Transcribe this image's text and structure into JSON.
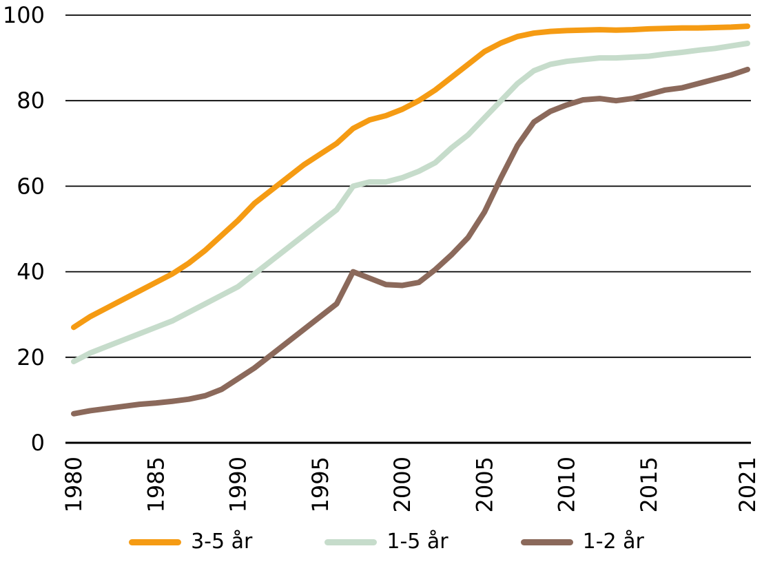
{
  "chart_data": {
    "type": "line",
    "title": "",
    "xlabel": "",
    "ylabel": "",
    "ylim": [
      0,
      100
    ],
    "yticks": [
      0,
      20,
      40,
      60,
      80,
      100
    ],
    "xticks": [
      1980,
      1985,
      1990,
      1995,
      2000,
      2005,
      2010,
      2015,
      2021
    ],
    "grid": true,
    "legend_position": "bottom",
    "x": [
      1980,
      1981,
      1982,
      1983,
      1984,
      1985,
      1986,
      1987,
      1988,
      1989,
      1990,
      1991,
      1992,
      1993,
      1994,
      1995,
      1996,
      1997,
      1998,
      1999,
      2000,
      2001,
      2002,
      2003,
      2004,
      2005,
      2006,
      2007,
      2008,
      2009,
      2010,
      2011,
      2012,
      2013,
      2014,
      2015,
      2016,
      2017,
      2018,
      2019,
      2020,
      2021
    ],
    "series": [
      {
        "name": "3-5 år",
        "color": "#F59B13",
        "values": [
          27,
          29.5,
          31.5,
          33.5,
          35.5,
          37.5,
          39.5,
          42,
          45,
          48.5,
          52,
          56,
          59,
          62,
          65,
          67.5,
          70,
          73.5,
          75.5,
          76.5,
          78,
          80,
          82.5,
          85.5,
          88.5,
          91.5,
          93.5,
          95,
          95.8,
          96.2,
          96.4,
          96.5,
          96.6,
          96.5,
          96.6,
          96.8,
          96.9,
          97,
          97,
          97.1,
          97.2,
          97.4
        ]
      },
      {
        "name": "1-5 år",
        "color": "#C6DCCB",
        "values": [
          19,
          21,
          22.5,
          24,
          25.5,
          27,
          28.5,
          30.5,
          32.5,
          34.5,
          36.5,
          39.5,
          42.5,
          45.5,
          48.5,
          51.5,
          54.5,
          60,
          61,
          61,
          62,
          63.5,
          65.5,
          69,
          72,
          76,
          80,
          84,
          87,
          88.5,
          89.2,
          89.6,
          90,
          90,
          90.2,
          90.4,
          90.9,
          91.3,
          91.8,
          92.2,
          92.8,
          93.4
        ]
      },
      {
        "name": "1-2 år",
        "color": "#8B695B",
        "values": [
          6.8,
          7.5,
          8,
          8.5,
          9,
          9.3,
          9.7,
          10.2,
          11,
          12.5,
          15,
          17.5,
          20.5,
          23.5,
          26.5,
          29.5,
          32.5,
          40,
          38.5,
          37,
          36.8,
          37.5,
          40.5,
          44,
          48,
          54,
          62,
          69.5,
          75,
          77.5,
          79,
          80.2,
          80.5,
          80,
          80.5,
          81.5,
          82.5,
          83,
          84,
          85,
          86,
          87.3
        ]
      }
    ]
  },
  "axes": {
    "y_tick_labels": [
      "0",
      "20",
      "40",
      "60",
      "80",
      "100"
    ],
    "x_tick_labels": [
      "1980",
      "1985",
      "1990",
      "1995",
      "2000",
      "2005",
      "2010",
      "2015",
      "2021"
    ]
  },
  "legend": {
    "items": [
      "3-5 år",
      "1-5 år",
      "1-2 år"
    ]
  }
}
